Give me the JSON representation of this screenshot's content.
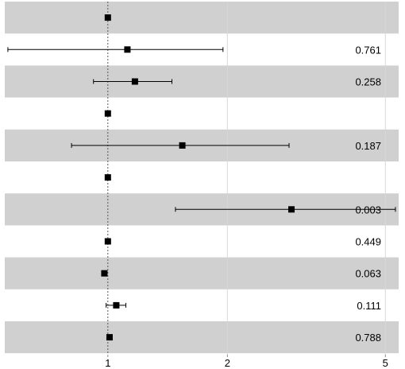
{
  "chart_data": {
    "type": "forest",
    "scale": "log",
    "x_ticks": [
      1,
      2,
      5
    ],
    "xlim": [
      0.55,
      5.4
    ],
    "reference_line": 1,
    "grid": "vertical",
    "rows": [
      {
        "est": 1.0,
        "lo": null,
        "hi": null,
        "p": ""
      },
      {
        "est": 1.12,
        "lo": 0.56,
        "hi": 1.95,
        "p": "0.761"
      },
      {
        "est": 1.17,
        "lo": 0.92,
        "hi": 1.45,
        "p": "0.258"
      },
      {
        "est": 1.0,
        "lo": null,
        "hi": null,
        "p": ""
      },
      {
        "est": 1.54,
        "lo": 0.81,
        "hi": 2.86,
        "p": "0.187"
      },
      {
        "est": 1.0,
        "lo": null,
        "hi": null,
        "p": ""
      },
      {
        "est": 2.9,
        "lo": 1.48,
        "hi": 5.3,
        "p": "0.003"
      },
      {
        "est": 1.0,
        "lo": null,
        "hi": null,
        "p": "0.449"
      },
      {
        "est": 0.98,
        "lo": null,
        "hi": null,
        "p": "0.063"
      },
      {
        "est": 1.05,
        "lo": 0.99,
        "hi": 1.11,
        "p": "0.111"
      },
      {
        "est": 1.01,
        "lo": null,
        "hi": null,
        "p": "0.788"
      }
    ]
  },
  "colors": {
    "band": "#d0d0d0",
    "grid": "#d8d8d8",
    "marker": "#000000",
    "refline": "#555555"
  }
}
